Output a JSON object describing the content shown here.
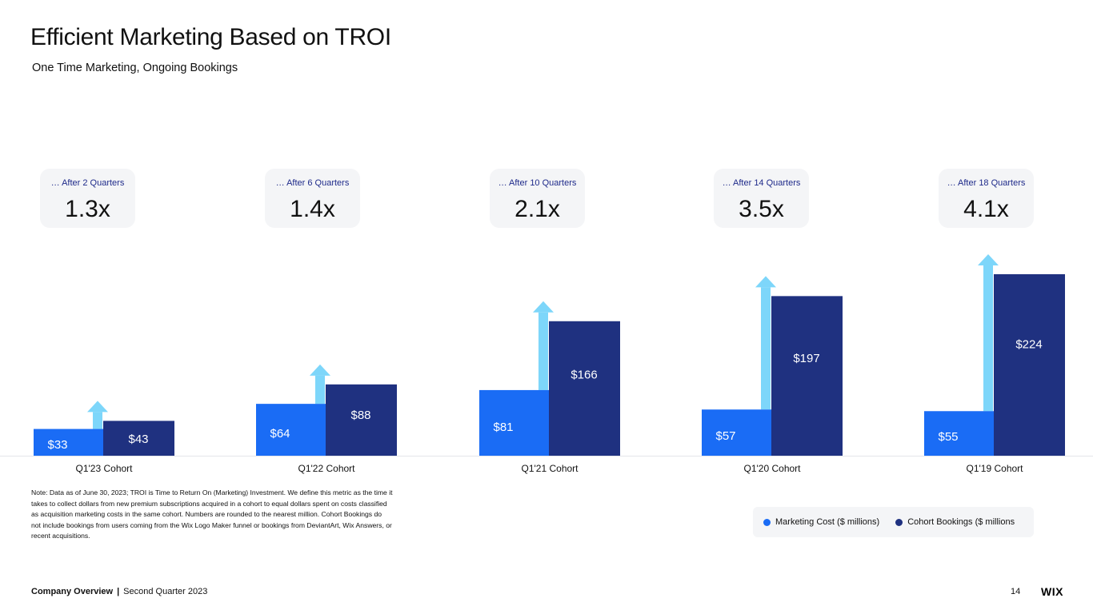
{
  "header": {
    "title": "Efficient Marketing Based on TROI",
    "subtitle": "One Time Marketing, Ongoing Bookings"
  },
  "cards": [
    {
      "label": "… After 2 Quarters",
      "value": "1.3x"
    },
    {
      "label": "… After 6 Quarters",
      "value": "1.4x"
    },
    {
      "label": "… After 10 Quarters",
      "value": "2.1x"
    },
    {
      "label": "… After 14 Quarters",
      "value": "3.5x"
    },
    {
      "label": "… After 18 Quarters",
      "value": "4.1x"
    }
  ],
  "chart_data": {
    "type": "bar",
    "categories": [
      "Q1'23 Cohort",
      "Q1'22 Cohort",
      "Q1'21 Cohort",
      "Q1'20 Cohort",
      "Q1'19 Cohort"
    ],
    "series": [
      {
        "name": "Marketing Cost ($ millions)",
        "values": [
          33,
          64,
          81,
          57,
          55
        ],
        "labels": [
          "$33",
          "$64",
          "$81",
          "$57",
          "$55"
        ],
        "color": "#1a6cf5"
      },
      {
        "name": "Cohort Bookings ($ millions",
        "values": [
          43,
          88,
          166,
          197,
          224
        ],
        "labels": [
          "$43",
          "$88",
          "$166",
          "$197",
          "$224"
        ],
        "color": "#1f3180"
      }
    ],
    "arrow_color": "#7dd6fa",
    "ylim": [
      0,
      224
    ],
    "legend": "bottom-right",
    "grid": false
  },
  "note": "Note: Data as of June 30, 2023; TROI is Time to Return On (Marketing) Investment. We define this metric as the time it takes to collect dollars from new premium subscriptions acquired in a cohort to equal dollars spent on costs classified as acquisition marketing costs in the same cohort. Numbers are rounded to the nearest million. Cohort Bookings do not include bookings from users coming from the Wix Logo Maker funnel or bookings from DeviantArt, Wix Answers, or recent acquisitions.",
  "legend": {
    "items": [
      {
        "label": "Marketing Cost ($ millions)",
        "color": "#1a6cf5"
      },
      {
        "label": "Cohort Bookings ($ millions",
        "color": "#1f3180"
      }
    ]
  },
  "footer": {
    "section": "Company Overview",
    "separator": "|",
    "period": "Second Quarter 2023",
    "page": "14",
    "logo": "WIX"
  }
}
